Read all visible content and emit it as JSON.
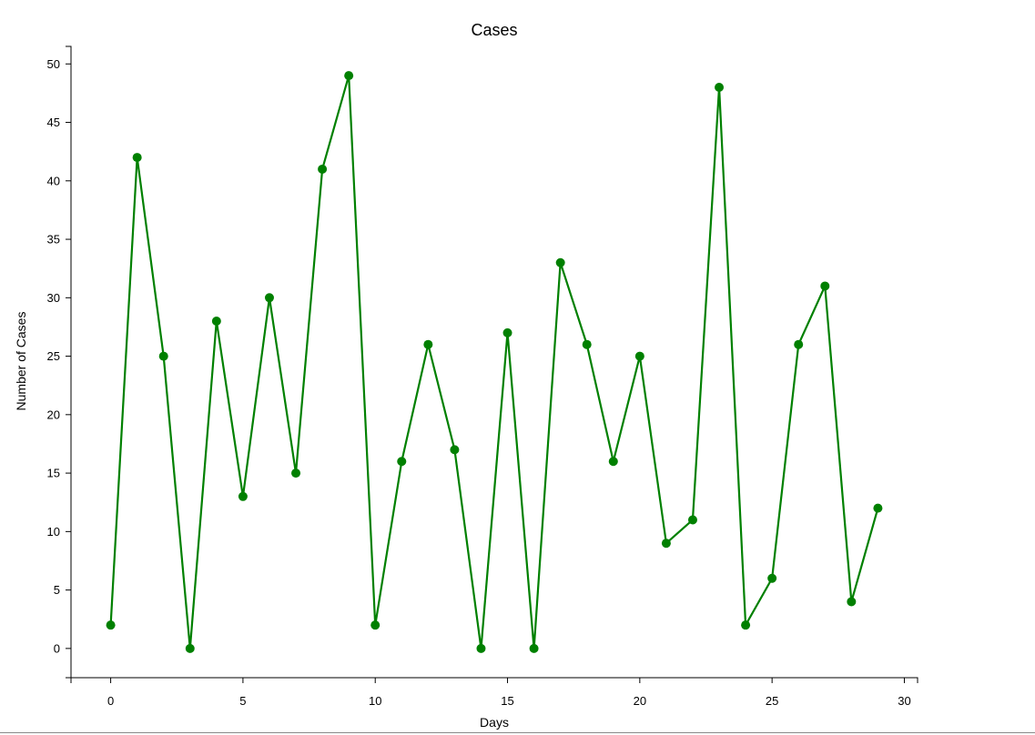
{
  "chart_data": {
    "type": "line",
    "title": "Cases",
    "xlabel": "Days",
    "ylabel": "Number of Cases",
    "xlim": [
      -1.5,
      30.5
    ],
    "ylim": [
      -2.5,
      51.5
    ],
    "xticks": [
      0,
      5,
      10,
      15,
      20,
      25,
      30
    ],
    "yticks": [
      0,
      5,
      10,
      15,
      20,
      25,
      30,
      35,
      40,
      45,
      50
    ],
    "grid": false,
    "series": [
      {
        "color": "#008000",
        "x": [
          0,
          1,
          2,
          3,
          4,
          5,
          6,
          7,
          8,
          9,
          10,
          11,
          12,
          13,
          14,
          15,
          16,
          17,
          18,
          19,
          20,
          21,
          22,
          23,
          24,
          25,
          26,
          27,
          28,
          29
        ],
        "values": [
          2,
          42,
          25,
          0,
          28,
          13,
          30,
          15,
          41,
          49,
          2,
          16,
          26,
          17,
          0,
          27,
          0,
          33,
          26,
          16,
          25,
          9,
          11,
          48,
          2,
          6,
          26,
          31,
          4,
          12
        ]
      }
    ]
  }
}
